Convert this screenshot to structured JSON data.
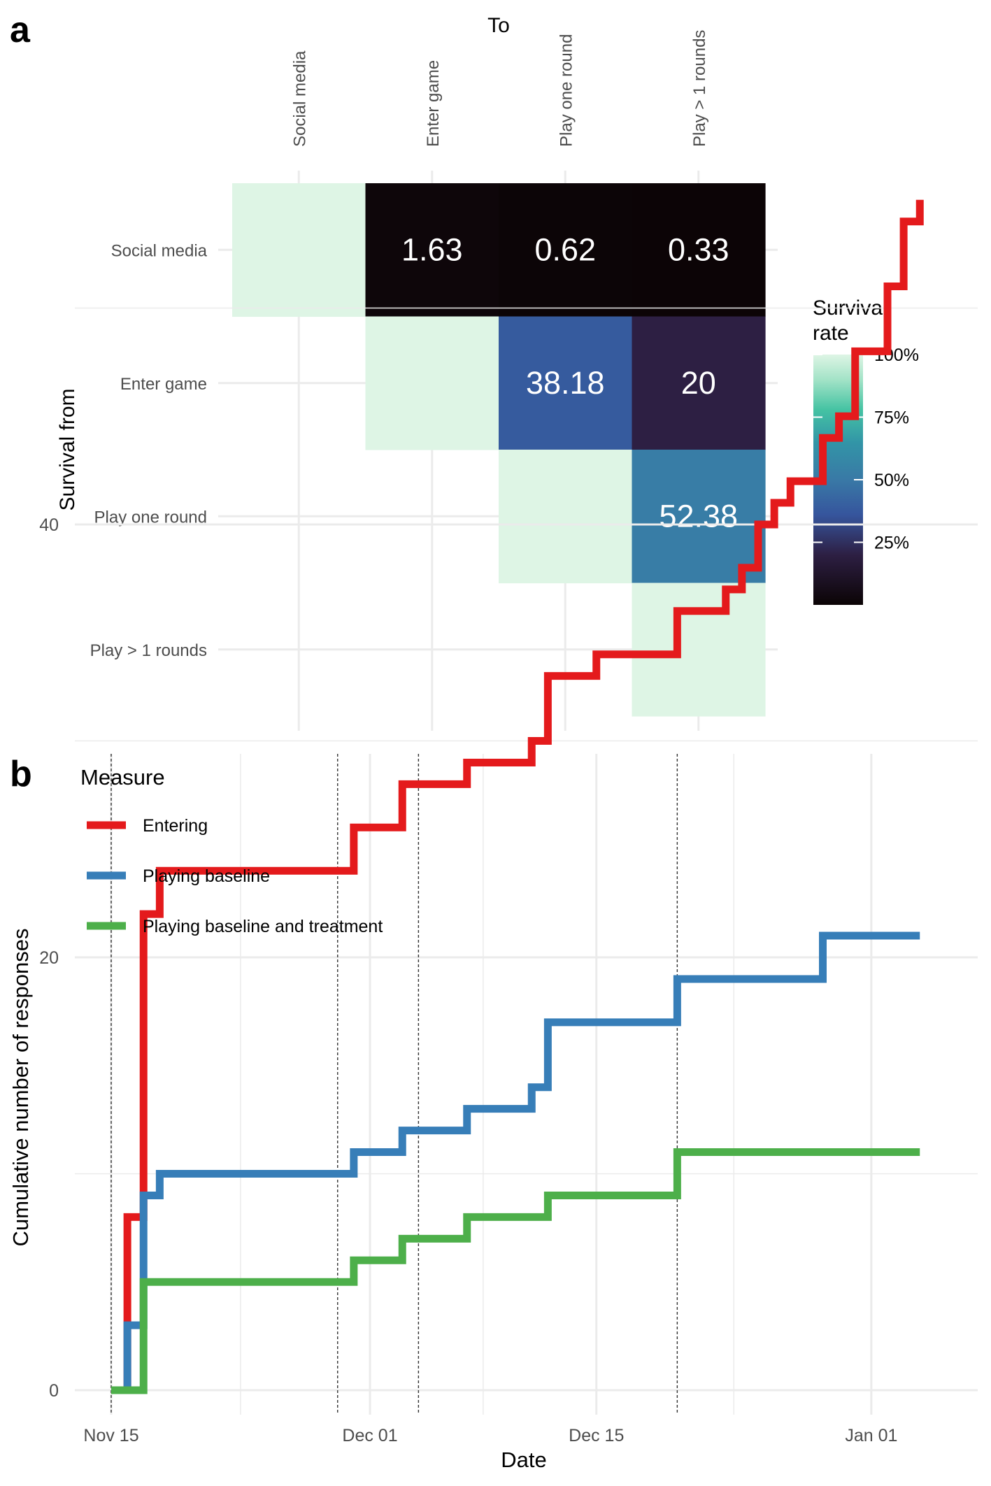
{
  "panels": {
    "a": {
      "tag": "a",
      "top_title": "To",
      "y_title": "Survival from",
      "to_stages": [
        "Social media",
        "Enter game",
        "Play one round",
        "Play > 1 rounds"
      ],
      "from_stages": [
        "Social media",
        "Enter game",
        "Play one round",
        "Play > 1 rounds"
      ],
      "legend": {
        "title_line1": "Survival",
        "title_line2": "rate",
        "tick_labels": [
          "100%",
          "75%",
          "50%",
          "25%"
        ],
        "tick_values": [
          100,
          75,
          50,
          25
        ]
      }
    },
    "b": {
      "tag": "b",
      "legend": {
        "title": "Measure",
        "items": [
          "Entering",
          "Playing baseline",
          "Playing baseline and treatment"
        ]
      },
      "y_ticks": [
        "0",
        "20",
        "40"
      ],
      "x_ticks": [
        "Nov 15",
        "Dec 01",
        "Dec 15",
        "Jan 01"
      ],
      "xlabel": "Date",
      "ylabel": "Cumulative number of responses"
    }
  },
  "chart_data": [
    {
      "type": "heatmap",
      "title": "",
      "xlabel": "To",
      "ylabel": "Survival from",
      "x_categories": [
        "Social media",
        "Enter game",
        "Play one round",
        "Play > 1 rounds"
      ],
      "y_categories": [
        "Social media",
        "Enter game",
        "Play one round",
        "Play > 1 rounds"
      ],
      "cells": [
        {
          "from": "Social media",
          "to": "Social media",
          "value": 100,
          "label": ""
        },
        {
          "from": "Social media",
          "to": "Enter game",
          "value": 1.63,
          "label": "1.63"
        },
        {
          "from": "Social media",
          "to": "Play one round",
          "value": 0.62,
          "label": "0.62"
        },
        {
          "from": "Social media",
          "to": "Play > 1 rounds",
          "value": 0.33,
          "label": "0.33"
        },
        {
          "from": "Enter game",
          "to": "Enter game",
          "value": 100,
          "label": ""
        },
        {
          "from": "Enter game",
          "to": "Play one round",
          "value": 38.18,
          "label": "38.18"
        },
        {
          "from": "Enter game",
          "to": "Play > 1 rounds",
          "value": 20,
          "label": "20"
        },
        {
          "from": "Play one round",
          "to": "Play one round",
          "value": 100,
          "label": ""
        },
        {
          "from": "Play one round",
          "to": "Play > 1 rounds",
          "value": 52.38,
          "label": "52.38"
        },
        {
          "from": "Play > 1 rounds",
          "to": "Play > 1 rounds",
          "value": 100,
          "label": ""
        }
      ],
      "colorbar": {
        "title": "Survival rate",
        "ticks": [
          "100%",
          "75%",
          "50%",
          "25%"
        ]
      }
    },
    {
      "type": "line",
      "title": "",
      "step": true,
      "xlabel": "Date",
      "ylabel": "Cumulative number of responses",
      "x_ticks": [
        "Nov 15",
        "Dec 01",
        "Dec 15",
        "Jan 01"
      ],
      "ylim": [
        0,
        55
      ],
      "y_ticks": [
        0,
        20,
        40
      ],
      "grid": true,
      "legend_position": "top-left",
      "vlines": [
        "2023-11-15",
        "2023-11-29",
        "2023-12-04",
        "2023-12-20"
      ],
      "series": [
        {
          "name": "Entering",
          "color": "#e41a1c",
          "points": [
            [
              "2023-11-15",
              0
            ],
            [
              "2023-11-16",
              8
            ],
            [
              "2023-11-17",
              22
            ],
            [
              "2023-11-18",
              24
            ],
            [
              "2023-11-30",
              26
            ],
            [
              "2023-12-03",
              28
            ],
            [
              "2023-12-07",
              29
            ],
            [
              "2023-12-11",
              30
            ],
            [
              "2023-12-12",
              33
            ],
            [
              "2023-12-15",
              34
            ],
            [
              "2023-12-20",
              36
            ],
            [
              "2023-12-23",
              37
            ],
            [
              "2023-12-24",
              38
            ],
            [
              "2023-12-25",
              40
            ],
            [
              "2023-12-26",
              41
            ],
            [
              "2023-12-27",
              42
            ],
            [
              "2023-12-29",
              44
            ],
            [
              "2023-12-30",
              45
            ],
            [
              "2023-12-31",
              48
            ],
            [
              "2024-01-02",
              51
            ],
            [
              "2024-01-03",
              54
            ],
            [
              "2024-01-04",
              55
            ]
          ]
        },
        {
          "name": "Playing baseline",
          "color": "#377eb8",
          "points": [
            [
              "2023-11-15",
              0
            ],
            [
              "2023-11-16",
              3
            ],
            [
              "2023-11-17",
              9
            ],
            [
              "2023-11-18",
              10
            ],
            [
              "2023-11-30",
              11
            ],
            [
              "2023-12-03",
              12
            ],
            [
              "2023-12-07",
              13
            ],
            [
              "2023-12-11",
              14
            ],
            [
              "2023-12-12",
              17
            ],
            [
              "2023-12-20",
              19
            ],
            [
              "2023-12-29",
              21
            ],
            [
              "2024-01-04",
              21
            ]
          ]
        },
        {
          "name": "Playing baseline and treatment",
          "color": "#4daf4a",
          "points": [
            [
              "2023-11-15",
              0
            ],
            [
              "2023-11-17",
              5
            ],
            [
              "2023-11-30",
              6
            ],
            [
              "2023-12-03",
              7
            ],
            [
              "2023-12-07",
              8
            ],
            [
              "2023-12-11",
              8
            ],
            [
              "2023-12-12",
              9
            ],
            [
              "2023-12-20",
              11
            ],
            [
              "2024-01-04",
              11
            ]
          ]
        }
      ]
    }
  ]
}
